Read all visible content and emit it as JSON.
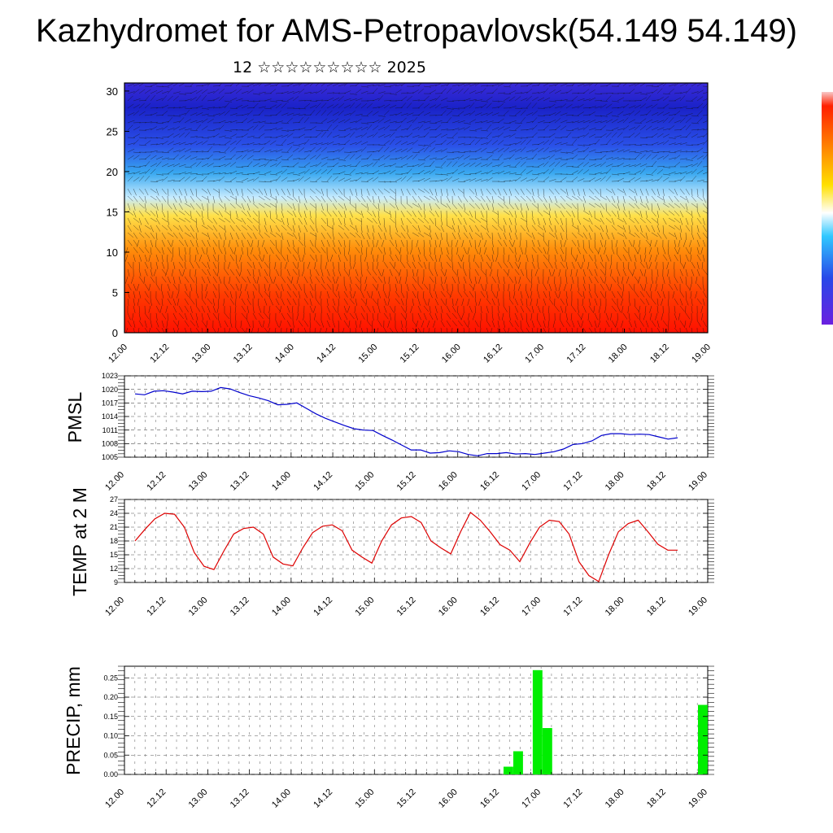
{
  "title": "Kazhydromet for AMS-Petropavlovsk(54.149 54.149)",
  "subtitle": "12 ☆☆☆☆☆☆☆☆☆ 2025",
  "time_labels": [
    "12.00",
    "12.12",
    "13.00",
    "13.12",
    "14.00",
    "14.12",
    "15.00",
    "15.12",
    "16.00",
    "16.12",
    "17.00",
    "17.12",
    "18.00",
    "18.12",
    "19.00"
  ],
  "colors": {
    "pmsl_line": "#0000cc",
    "temp_line": "#dd0000",
    "precip_bar": "#00ee00"
  },
  "chart_data": [
    {
      "type": "heatmap",
      "title": "",
      "y_ticks": [
        "0",
        "5",
        "10",
        "15",
        "20",
        "25",
        "30"
      ],
      "ylim": [
        0,
        31
      ],
      "x_range": [
        "12.00",
        "19.00"
      ],
      "colormap": "blue (top) to cyan, yellow, orange and red (bottom)",
      "overlay": "wind barbs",
      "colorbar": "vertical, right edge"
    },
    {
      "type": "line",
      "ylabel": "PMSL",
      "y_ticks": [
        "1005",
        "1008",
        "1011",
        "1014",
        "1017",
        "1020",
        "1023"
      ],
      "ylim": [
        1005,
        1023
      ],
      "grid": true,
      "series": [
        {
          "values": [
            1019.0,
            1018.8,
            1019.6,
            1019.7,
            1019.4,
            1019.0,
            1019.6,
            1019.5,
            1019.6,
            1020.4,
            1020.1,
            1019.3,
            1018.6,
            1018.1,
            1017.5,
            1016.6,
            1016.7,
            1017.0,
            1015.8,
            1014.6,
            1013.6,
            1012.8,
            1012.0,
            1011.3,
            1011.0,
            1010.9,
            1009.8,
            1008.8,
            1007.7,
            1006.6,
            1006.6,
            1005.9,
            1006.0,
            1006.4,
            1006.2,
            1005.6,
            1005.3,
            1005.8,
            1005.8,
            1006.0,
            1005.7,
            1005.8,
            1005.6,
            1005.9,
            1006.2,
            1006.8,
            1007.8,
            1008.0,
            1008.6,
            1009.8,
            1010.2,
            1010.2,
            1010.0,
            1010.1,
            1010.0,
            1009.5,
            1009.0,
            1009.3
          ]
        }
      ]
    },
    {
      "type": "line",
      "ylabel": "TEMP at 2 M",
      "y_ticks": [
        "9",
        "12",
        "15",
        "18",
        "21",
        "24",
        "27"
      ],
      "ylim": [
        9,
        27
      ],
      "grid": true,
      "series": [
        {
          "values": [
            18.0,
            20.5,
            22.8,
            24.0,
            23.8,
            21.0,
            15.5,
            12.5,
            11.8,
            15.8,
            19.5,
            20.7,
            21.0,
            19.5,
            14.5,
            13.0,
            12.6,
            16.5,
            19.8,
            21.2,
            21.5,
            20.2,
            16.0,
            14.5,
            13.2,
            18.0,
            21.5,
            23.0,
            23.3,
            22.0,
            18.0,
            16.5,
            15.2,
            20.0,
            24.2,
            22.5,
            20.0,
            17.2,
            16.0,
            13.5,
            17.5,
            21.0,
            22.5,
            22.2,
            19.5,
            13.5,
            10.5,
            9.2,
            15.0,
            20.0,
            21.8,
            22.5,
            20.0,
            17.3,
            16.0,
            16.0
          ]
        }
      ]
    },
    {
      "type": "bar",
      "ylabel": "PRECIP, mm",
      "y_ticks": [
        "0.00",
        "0.05",
        "0.10",
        "0.15",
        "0.20",
        "0.25"
      ],
      "ylim": [
        0,
        0.28
      ],
      "grid": true,
      "x_index": [
        39,
        40,
        42,
        43,
        59
      ],
      "values": [
        0.02,
        0.06,
        0.27,
        0.12,
        0.18
      ]
    }
  ]
}
